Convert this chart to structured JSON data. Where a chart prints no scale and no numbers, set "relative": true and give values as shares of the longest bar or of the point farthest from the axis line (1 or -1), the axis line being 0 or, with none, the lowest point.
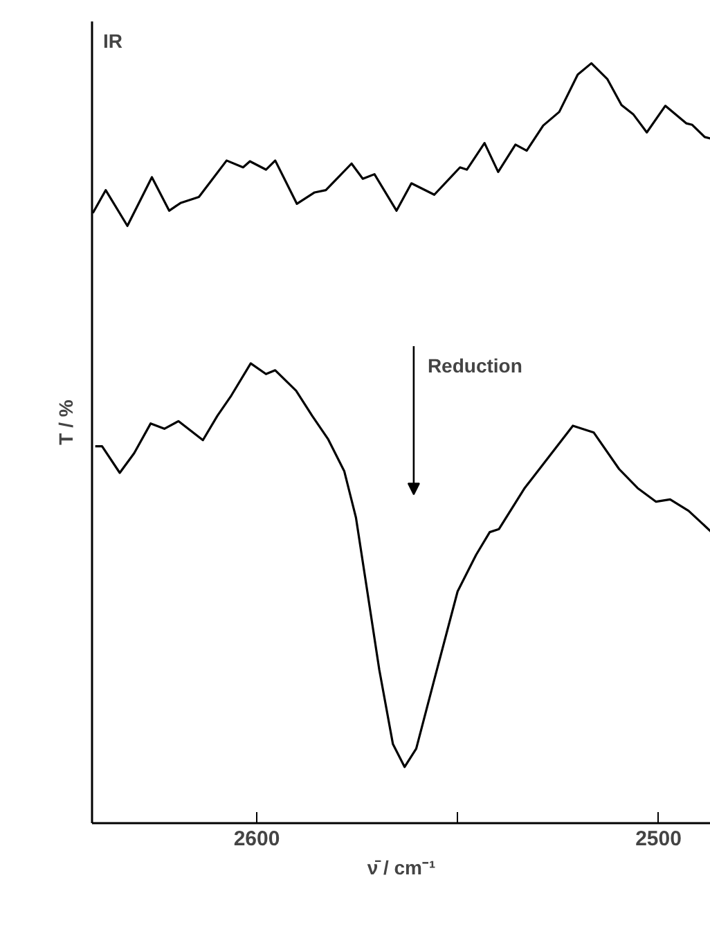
{
  "chart_data": {
    "type": "line",
    "relative": true,
    "xlabel": "ν̄ / cm⁻¹",
    "ylabel": "T / %",
    "annotations": [
      "IR",
      "Reduction"
    ],
    "xlim": [
      2641,
      2487
    ],
    "xticks": [
      2600,
      {
        "value": 2550,
        "label": null
      },
      2500
    ],
    "grid": false,
    "marker": "none",
    "line_style": "solid",
    "series": [
      {
        "color": "#000000",
        "x": [
          2640.8,
          2637.6,
          2632.2,
          2626.1,
          2621.8,
          2619.0,
          2614.4,
          2607.5,
          2603.4,
          2601.7,
          2597.7,
          2595.4,
          2590.0,
          2585.6,
          2582.8,
          2576.4,
          2573.6,
          2570.7,
          2565.2,
          2561.5,
          2555.8,
          2549.4,
          2547.7,
          2543.3,
          2539.9,
          2535.6,
          2532.8,
          2528.7,
          2524.7,
          2520.1,
          2516.7,
          2512.7,
          2509.2,
          2506.3,
          2502.9,
          2498.3,
          2493.1,
          2491.6,
          2488.5,
          2487.0
        ],
        "values": [
          0.803,
          0.833,
          0.786,
          0.85,
          0.806,
          0.816,
          0.824,
          0.872,
          0.863,
          0.871,
          0.86,
          0.872,
          0.815,
          0.83,
          0.833,
          0.868,
          0.848,
          0.854,
          0.806,
          0.842,
          0.827,
          0.863,
          0.86,
          0.895,
          0.857,
          0.893,
          0.885,
          0.918,
          0.936,
          0.985,
          1.0,
          0.979,
          0.945,
          0.933,
          0.909,
          0.944,
          0.921,
          0.919,
          0.903,
          0.901
        ]
      },
      {
        "color": "#000000",
        "x": [
          2640.2,
          2638.5,
          2634.1,
          2630.5,
          2626.4,
          2623.0,
          2619.5,
          2613.4,
          2609.8,
          2606.3,
          2601.5,
          2597.7,
          2595.4,
          2590.2,
          2586.2,
          2582.2,
          2578.2,
          2575.3,
          2573.0,
          2569.5,
          2566.1,
          2563.2,
          2560.3,
          2555.8,
          2550.0,
          2545.4,
          2542.0,
          2539.7,
          2533.3,
          2527.0,
          2521.3,
          2516.1,
          2509.8,
          2505.2,
          2500.6,
          2497.1,
          2492.5,
          2487.0
        ],
        "values": [
          0.496,
          0.496,
          0.461,
          0.487,
          0.526,
          0.519,
          0.529,
          0.504,
          0.536,
          0.563,
          0.605,
          0.591,
          0.596,
          0.569,
          0.536,
          0.505,
          0.463,
          0.402,
          0.323,
          0.202,
          0.104,
          0.074,
          0.098,
          0.189,
          0.305,
          0.353,
          0.383,
          0.387,
          0.441,
          0.484,
          0.523,
          0.514,
          0.466,
          0.441,
          0.423,
          0.426,
          0.411,
          0.384
        ]
      }
    ]
  }
}
